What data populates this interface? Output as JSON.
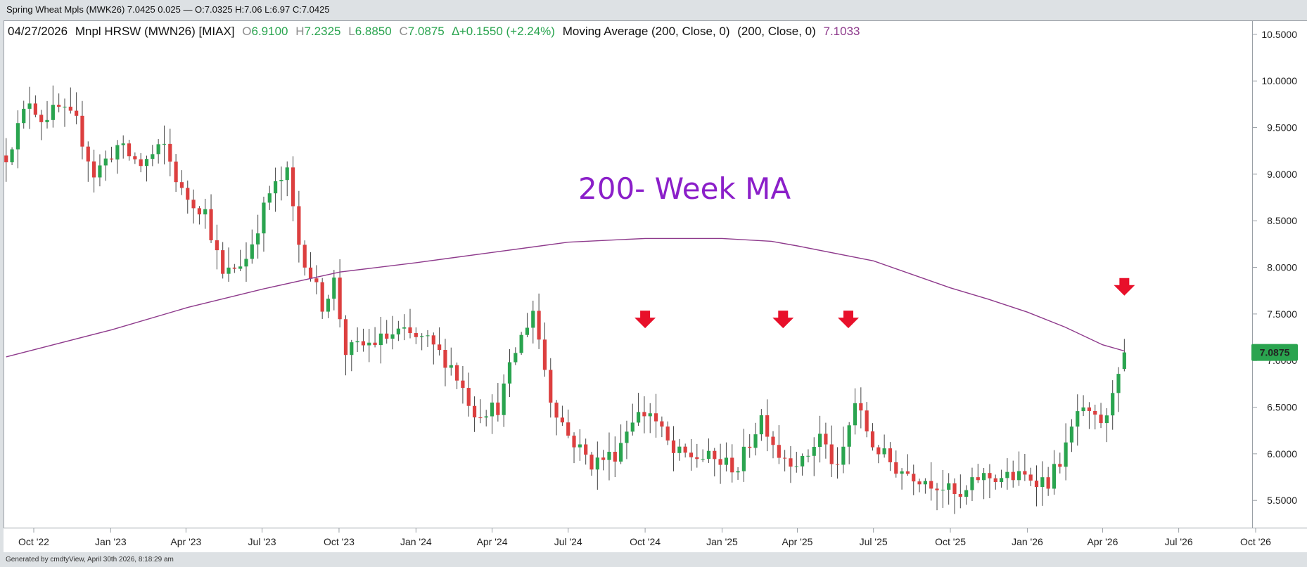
{
  "header": {
    "window_title": "Spring Wheat Mpls (MWK26) 7.0425 0.025 — O:7.0325 H:7.06 L:6.97 C:7.0425"
  },
  "legend": {
    "date": "04/27/2026",
    "symbol": "Mnpl HRSW (MWN26) [MIAX]",
    "o_label": "O",
    "o_value": "6.9100",
    "h_label": "H",
    "h_value": "7.2325",
    "l_label": "L",
    "l_value": "6.8850",
    "c_label": "C",
    "c_value": "7.0875",
    "change": "∆+0.1550 (+2.24%)",
    "study": "Moving Average (200, Close, 0)",
    "study_params": "(200, Close, 0)",
    "study_value": "7.1033"
  },
  "footer": {
    "generated": "Generated by cmdtyView, April 30th 2026, 8:18:29 am"
  },
  "colors": {
    "up": "#2aa44f",
    "down": "#dc3f3f",
    "ma": "#8e3a8c",
    "arrow": "#e8102a",
    "annotation": "#8b1fc9",
    "last_price_bg": "#2aa44f",
    "grid": "#e6e6e6"
  },
  "chart_data": {
    "type": "candlestick",
    "timeframe": "weekly",
    "annotation": "200- Week MA",
    "x_ticks": [
      "Oct '22",
      "Jan '23",
      "Apr '23",
      "Jul '23",
      "Oct '23",
      "Jan '24",
      "Apr '24",
      "Jul '24",
      "Oct '24",
      "Jan '25",
      "Apr '25",
      "Jul '25",
      "Oct '25",
      "Jan '26",
      "Apr '26",
      "Jul '26",
      "Oct '26"
    ],
    "y_ticks": [
      "5.5000",
      "6.0000",
      "6.5000",
      "7.0000",
      "7.5000",
      "8.0000",
      "8.5000",
      "9.0000",
      "9.5000",
      "10.0000",
      "10.5000"
    ],
    "ylim": [
      5.2,
      10.65
    ],
    "last_price_label": "7.0875",
    "last_price": 7.0875,
    "ma_value": 7.1033,
    "ma_series": [
      {
        "x": "2022-08-29",
        "y": 7.04
      },
      {
        "x": "2023-01-02",
        "y": 7.33
      },
      {
        "x": "2023-04-03",
        "y": 7.57
      },
      {
        "x": "2023-07-03",
        "y": 7.77
      },
      {
        "x": "2023-10-02",
        "y": 7.95
      },
      {
        "x": "2024-01-01",
        "y": 8.05
      },
      {
        "x": "2024-04-01",
        "y": 8.16
      },
      {
        "x": "2024-07-01",
        "y": 8.27
      },
      {
        "x": "2024-10-01",
        "y": 8.31
      },
      {
        "x": "2025-01-01",
        "y": 8.31
      },
      {
        "x": "2025-03-01",
        "y": 8.28
      },
      {
        "x": "2025-04-01",
        "y": 8.23
      },
      {
        "x": "2025-07-01",
        "y": 8.07
      },
      {
        "x": "2025-10-01",
        "y": 7.78
      },
      {
        "x": "2025-11-15",
        "y": 7.66
      },
      {
        "x": "2026-01-01",
        "y": 7.52
      },
      {
        "x": "2026-02-15",
        "y": 7.36
      },
      {
        "x": "2026-04-01",
        "y": 7.17
      },
      {
        "x": "2026-04-27",
        "y": 7.1033
      }
    ],
    "markers": [
      {
        "name": "sell-arrow-oct-2024",
        "date": "2024-10-01",
        "price": 7.4
      },
      {
        "name": "sell-arrow-mar-2025",
        "date": "2025-03-15",
        "price": 7.4
      },
      {
        "name": "sell-arrow-jun-2025",
        "date": "2025-06-01",
        "price": 7.4
      },
      {
        "name": "sell-arrow-apr-2026",
        "date": "2026-04-27",
        "price": 7.75
      }
    ],
    "close_path": [
      {
        "x": "2022-08-29",
        "y": 9.2
      },
      {
        "x": "2022-09-12",
        "y": 9.5
      },
      {
        "x": "2022-09-26",
        "y": 9.8
      },
      {
        "x": "2022-10-10",
        "y": 9.6
      },
      {
        "x": "2022-10-31",
        "y": 9.7
      },
      {
        "x": "2022-11-21",
        "y": 9.55
      },
      {
        "x": "2022-12-12",
        "y": 9.0
      },
      {
        "x": "2023-01-09",
        "y": 9.3
      },
      {
        "x": "2023-02-06",
        "y": 9.1
      },
      {
        "x": "2023-03-06",
        "y": 9.3
      },
      {
        "x": "2023-03-27",
        "y": 8.8
      },
      {
        "x": "2023-04-24",
        "y": 8.6
      },
      {
        "x": "2023-05-15",
        "y": 7.9
      },
      {
        "x": "2023-06-12",
        "y": 8.1
      },
      {
        "x": "2023-07-10",
        "y": 8.8
      },
      {
        "x": "2023-07-31",
        "y": 9.0
      },
      {
        "x": "2023-08-14",
        "y": 8.25
      },
      {
        "x": "2023-09-11",
        "y": 7.6
      },
      {
        "x": "2023-09-25",
        "y": 7.85
      },
      {
        "x": "2023-10-09",
        "y": 7.1
      },
      {
        "x": "2023-11-13",
        "y": 7.2
      },
      {
        "x": "2023-12-11",
        "y": 7.3
      },
      {
        "x": "2024-01-15",
        "y": 7.2
      },
      {
        "x": "2024-02-12",
        "y": 6.95
      },
      {
        "x": "2024-03-11",
        "y": 6.45
      },
      {
        "x": "2024-04-08",
        "y": 6.5
      },
      {
        "x": "2024-04-29",
        "y": 7.1
      },
      {
        "x": "2024-05-20",
        "y": 7.55
      },
      {
        "x": "2024-06-10",
        "y": 6.6
      },
      {
        "x": "2024-07-01",
        "y": 6.2
      },
      {
        "x": "2024-07-29",
        "y": 5.9
      },
      {
        "x": "2024-08-26",
        "y": 6.0
      },
      {
        "x": "2024-09-16",
        "y": 6.4
      },
      {
        "x": "2024-10-07",
        "y": 6.45
      },
      {
        "x": "2024-11-04",
        "y": 6.0
      },
      {
        "x": "2024-12-16",
        "y": 5.95
      },
      {
        "x": "2025-01-20",
        "y": 5.85
      },
      {
        "x": "2025-02-17",
        "y": 6.4
      },
      {
        "x": "2025-03-10",
        "y": 6.0
      },
      {
        "x": "2025-04-07",
        "y": 5.9
      },
      {
        "x": "2025-04-28",
        "y": 6.2
      },
      {
        "x": "2025-05-19",
        "y": 5.8
      },
      {
        "x": "2025-06-09",
        "y": 6.55
      },
      {
        "x": "2025-06-30",
        "y": 6.1
      },
      {
        "x": "2025-07-28",
        "y": 5.85
      },
      {
        "x": "2025-08-25",
        "y": 5.75
      },
      {
        "x": "2025-09-22",
        "y": 5.65
      },
      {
        "x": "2025-10-13",
        "y": 5.5
      },
      {
        "x": "2025-11-03",
        "y": 5.75
      },
      {
        "x": "2025-12-08",
        "y": 5.75
      },
      {
        "x": "2026-01-05",
        "y": 5.75
      },
      {
        "x": "2026-01-26",
        "y": 5.7
      },
      {
        "x": "2026-02-16",
        "y": 6.05
      },
      {
        "x": "2026-03-02",
        "y": 6.45
      },
      {
        "x": "2026-03-23",
        "y": 6.35
      },
      {
        "x": "2026-04-06",
        "y": 6.35
      },
      {
        "x": "2026-04-13",
        "y": 6.7
      },
      {
        "x": "2026-04-20",
        "y": 6.93
      },
      {
        "x": "2026-04-27",
        "y": 7.0875
      }
    ]
  }
}
